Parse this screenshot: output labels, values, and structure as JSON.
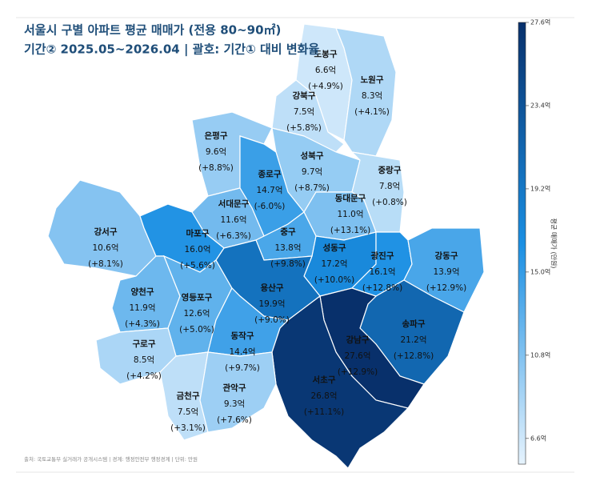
{
  "title": "서울시 구별 아파트 평균 매매가 (전용 80~90㎡)",
  "subtitle": "기간② 2025.05~2026.04 | 괄호: 기간① 대비 변화율",
  "source": "출처: 국토교통부 실거래가 공개시스템 | 경계: 행정안전부 행정경계 | 단위: 만원",
  "colorbar": {
    "label": "평균 매매가 (만원)",
    "lim": [
      5.3,
      27.6
    ],
    "colors": [
      "#e6f3fd",
      "#1a8fe3",
      "#08306b"
    ],
    "ticks": [
      {
        "value": 6.6,
        "label": "6.6억"
      },
      {
        "value": 10.8,
        "label": "10.8억"
      },
      {
        "value": 15.0,
        "label": "15.0억"
      },
      {
        "value": 19.2,
        "label": "19.2억"
      },
      {
        "value": 23.4,
        "label": "23.4억"
      },
      {
        "value": 27.6,
        "label": "27.6억"
      }
    ]
  },
  "districts": [
    {
      "name": "도봉구",
      "value": 6.6,
      "value_label": "6.6억",
      "change": "(+4.9%)"
    },
    {
      "name": "노원구",
      "value": 8.3,
      "value_label": "8.3억",
      "change": "(+4.1%)"
    },
    {
      "name": "강북구",
      "value": 7.5,
      "value_label": "7.5억",
      "change": "(+5.8%)"
    },
    {
      "name": "은평구",
      "value": 9.6,
      "value_label": "9.6억",
      "change": "(+8.8%)"
    },
    {
      "name": "성북구",
      "value": 9.7,
      "value_label": "9.7억",
      "change": "(+8.7%)"
    },
    {
      "name": "종로구",
      "value": 14.7,
      "value_label": "14.7억",
      "change": "(-6.0%)"
    },
    {
      "name": "중랑구",
      "value": 7.8,
      "value_label": "7.8억",
      "change": "(+0.8%)"
    },
    {
      "name": "서대문구",
      "value": 11.6,
      "value_label": "11.6억",
      "change": "(+6.3%)"
    },
    {
      "name": "동대문구",
      "value": 11.0,
      "value_label": "11.0억",
      "change": "(+13.1%)"
    },
    {
      "name": "강서구",
      "value": 10.6,
      "value_label": "10.6억",
      "change": "(+8.1%)"
    },
    {
      "name": "마포구",
      "value": 16.0,
      "value_label": "16.0억",
      "change": "(+5.6%)"
    },
    {
      "name": "중구",
      "value": 13.8,
      "value_label": "13.8억",
      "change": "(+9.8%)"
    },
    {
      "name": "성동구",
      "value": 17.2,
      "value_label": "17.2억",
      "change": "(+10.0%)"
    },
    {
      "name": "광진구",
      "value": 16.1,
      "value_label": "16.1억",
      "change": "(+12.8%)"
    },
    {
      "name": "강동구",
      "value": 13.9,
      "value_label": "13.9억",
      "change": "(+12.9%)"
    },
    {
      "name": "양천구",
      "value": 11.9,
      "value_label": "11.9억",
      "change": "(+4.3%)"
    },
    {
      "name": "영등포구",
      "value": 12.6,
      "value_label": "12.6억",
      "change": "(+5.0%)"
    },
    {
      "name": "용산구",
      "value": 19.9,
      "value_label": "19.9억",
      "change": "(+9.0%)"
    },
    {
      "name": "송파구",
      "value": 21.2,
      "value_label": "21.2억",
      "change": "(+12.8%)"
    },
    {
      "name": "구로구",
      "value": 8.5,
      "value_label": "8.5억",
      "change": "(+4.2%)"
    },
    {
      "name": "동작구",
      "value": 14.4,
      "value_label": "14.4억",
      "change": "(+9.7%)"
    },
    {
      "name": "강남구",
      "value": 27.6,
      "value_label": "27.6억",
      "change": "(+12.9%)"
    },
    {
      "name": "서초구",
      "value": 26.8,
      "value_label": "26.8억",
      "change": "(+11.1%)"
    },
    {
      "name": "금천구",
      "value": 7.5,
      "value_label": "7.5억",
      "change": "(+3.1%)"
    },
    {
      "name": "관악구",
      "value": 9.3,
      "value_label": "9.3억",
      "change": "(+7.6%)"
    }
  ]
}
